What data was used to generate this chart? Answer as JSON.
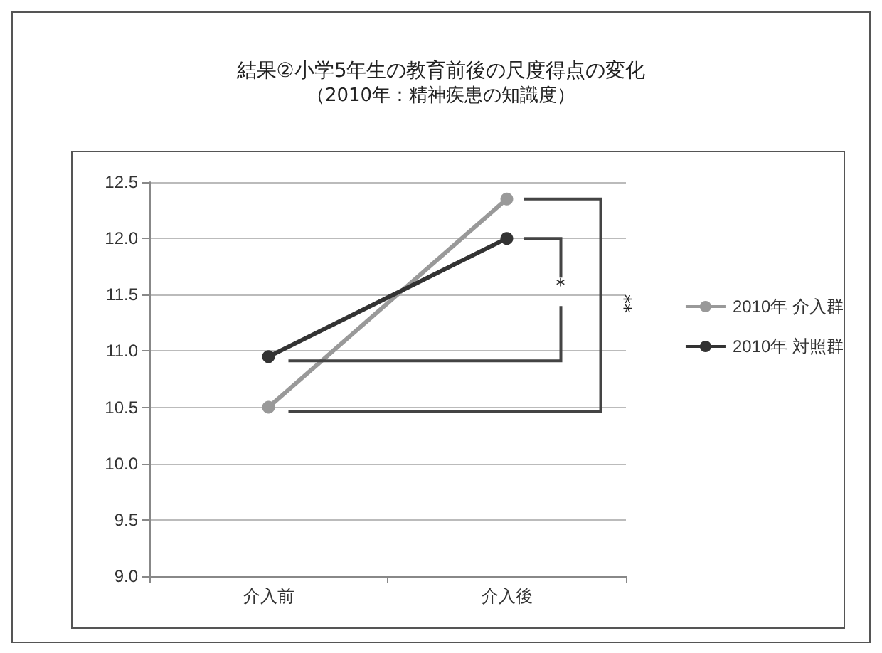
{
  "chart_data": {
    "type": "line",
    "title": "結果②小学5年生の教育前後の尺度得点の変化",
    "subtitle": "（2010年：精神疾患の知識度）",
    "categories": [
      "介入前",
      "介入後"
    ],
    "series": [
      {
        "name": "2010年 介入群",
        "color": "#999999",
        "values": [
          10.5,
          12.35
        ]
      },
      {
        "name": "2010年 対照群",
        "color": "#333333",
        "values": [
          10.95,
          12.0
        ]
      }
    ],
    "ylim": [
      9.0,
      12.5
    ],
    "yticks": [
      {
        "value": 9,
        "label": "9.0"
      },
      9.5,
      {
        "value": 10,
        "label": "10.0"
      },
      10.5,
      {
        "value": 11,
        "label": "11.0"
      },
      11.5,
      {
        "value": 12,
        "label": "12.0"
      },
      12.5
    ],
    "grid": "y",
    "legend": "right",
    "marker": "circle",
    "line_style": "solid",
    "annotations": [
      "*",
      "**"
    ]
  }
}
